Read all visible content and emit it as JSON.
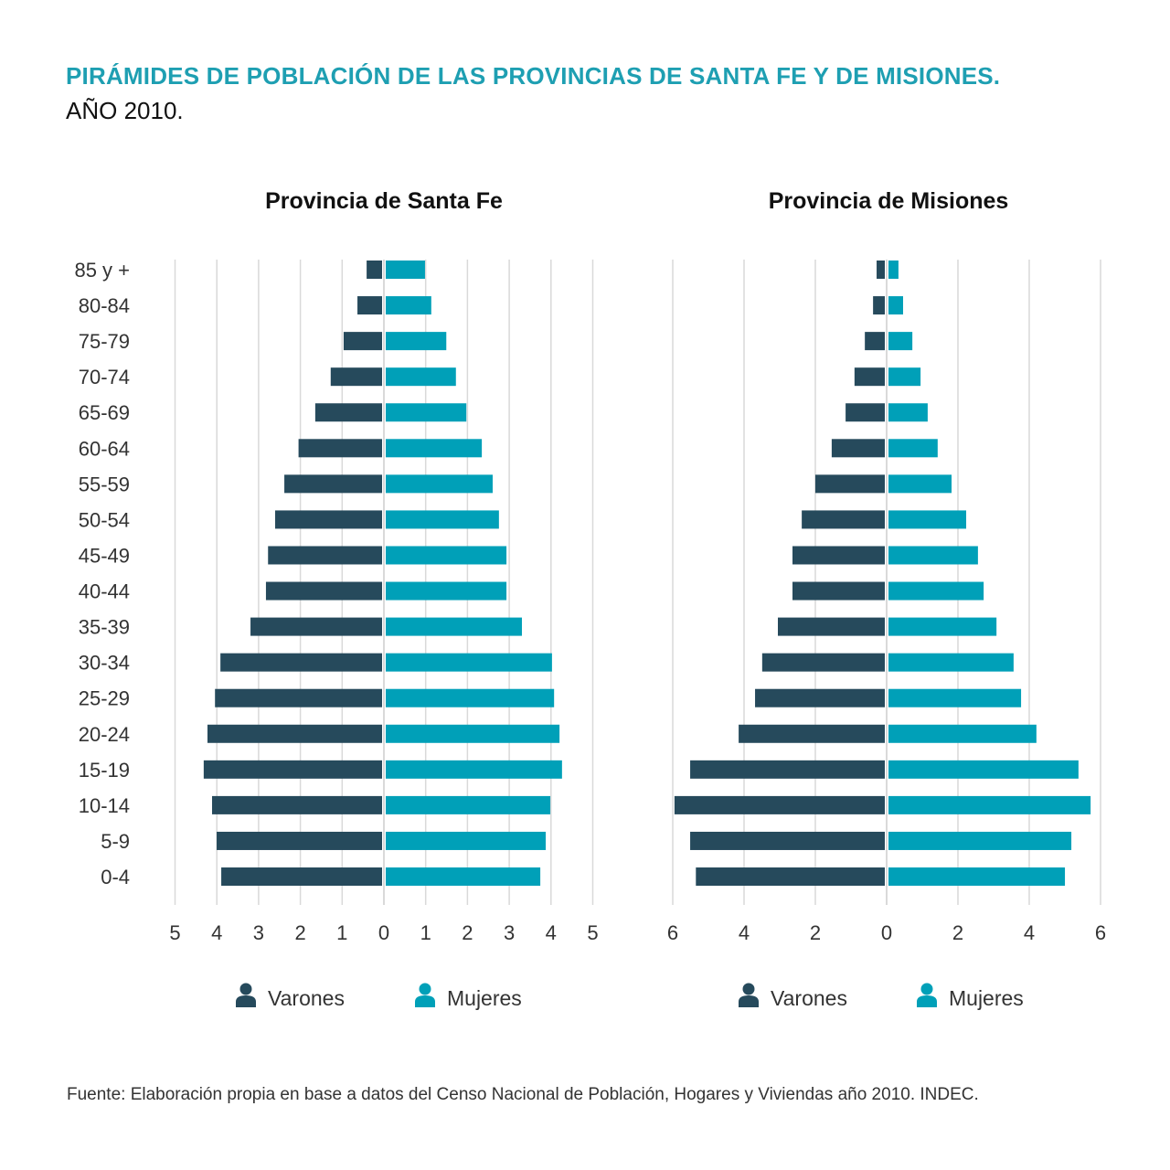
{
  "header": {
    "title": "PIRÁMIDES DE POBLACIÓN DE LAS PROVINCIAS DE SANTA FE Y DE MISIONES.",
    "subtitle": "AÑO 2010."
  },
  "footer": {
    "source": "Fuente: Elaboración propia en base a datos del Censo Nacional de Población, Hogares y Viviendas año 2010. INDEC."
  },
  "colors": {
    "male": "#264a5c",
    "female": "#00a0b8",
    "title": "#1e9fb2",
    "grid": "#d9d9d9"
  },
  "legend": {
    "male_label": "Varones",
    "female_label": "Mujeres",
    "icon": "person-icon"
  },
  "chart_data": [
    {
      "type": "bar",
      "orientation": "horizontal-pyramid",
      "title": "Provincia de Santa Fe",
      "xlabel": "",
      "ylabel": "",
      "unit": "%",
      "xlim": [
        -5,
        5
      ],
      "ticks": [
        5,
        4,
        3,
        2,
        1,
        0,
        1,
        2,
        3,
        4,
        5
      ],
      "grid": true,
      "legend_position": "bottom",
      "categories": [
        "85 y +",
        "80-84",
        "75-79",
        "70-74",
        "65-69",
        "60-64",
        "55-59",
        "50-54",
        "45-49",
        "40-44",
        "35-39",
        "30-34",
        "25-29",
        "20-24",
        "15-19",
        "10-14",
        "5-9",
        "0-4"
      ],
      "series": [
        {
          "name": "Varones",
          "values": [
            0.37,
            0.59,
            0.92,
            1.23,
            1.6,
            2.0,
            2.34,
            2.56,
            2.73,
            2.78,
            3.15,
            3.87,
            4.0,
            4.18,
            4.27,
            4.07,
            3.96,
            3.85
          ]
        },
        {
          "name": "Mujeres",
          "values": [
            0.94,
            1.09,
            1.45,
            1.68,
            1.93,
            2.3,
            2.56,
            2.71,
            2.89,
            2.89,
            3.26,
            3.98,
            4.03,
            4.16,
            4.22,
            3.94,
            3.83,
            3.7
          ]
        }
      ]
    },
    {
      "type": "bar",
      "orientation": "horizontal-pyramid",
      "title": "Provincia de Misiones",
      "xlabel": "",
      "ylabel": "",
      "unit": "%",
      "xlim": [
        -6,
        6
      ],
      "ticks": [
        6,
        4,
        2,
        0,
        2,
        4,
        6
      ],
      "grid": true,
      "legend_position": "bottom",
      "categories": [
        "85 y +",
        "80-84",
        "75-79",
        "70-74",
        "65-69",
        "60-64",
        "55-59",
        "50-54",
        "45-49",
        "40-44",
        "35-39",
        "30-34",
        "25-29",
        "20-24",
        "15-19",
        "10-14",
        "5-9",
        "0-4"
      ],
      "series": [
        {
          "name": "Varones",
          "values": [
            0.23,
            0.33,
            0.56,
            0.85,
            1.1,
            1.49,
            1.95,
            2.33,
            2.59,
            2.59,
            3.0,
            3.44,
            3.64,
            4.1,
            5.46,
            5.9,
            5.46,
            5.3
          ]
        },
        {
          "name": "Mujeres",
          "values": [
            0.28,
            0.41,
            0.67,
            0.9,
            1.1,
            1.38,
            1.77,
            2.18,
            2.51,
            2.67,
            3.03,
            3.51,
            3.72,
            4.15,
            5.33,
            5.67,
            5.13,
            4.95
          ]
        }
      ]
    }
  ]
}
